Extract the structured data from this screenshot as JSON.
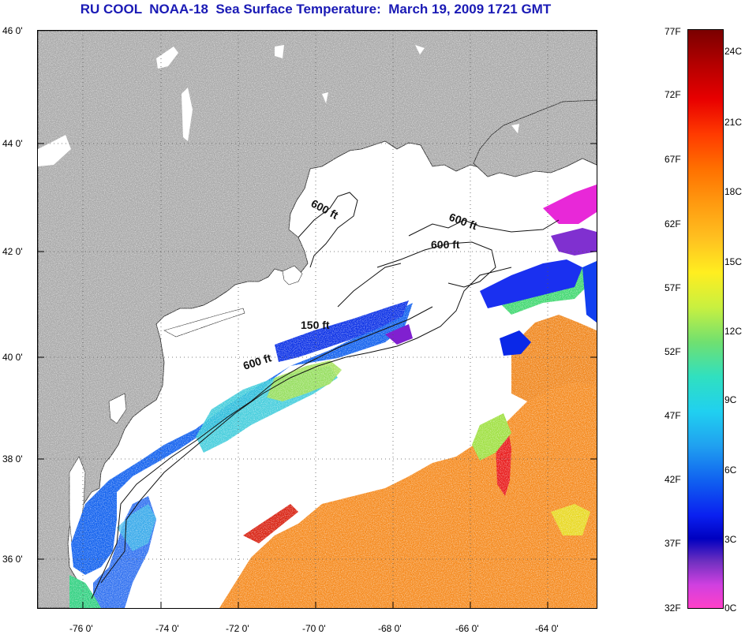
{
  "title": "RU COOL  NOAA-18  Sea Surface Temperature:  March 19, 2009 1721 GMT",
  "lat_labels": [
    "46 0'",
    "44 0'",
    "42 0'",
    "40 0'",
    "38 0'",
    "36 0'"
  ],
  "lon_labels": [
    "-76 0'",
    "-74 0'",
    "-72 0'",
    "-70 0'",
    "-68 0'",
    "-66 0'",
    "-64 0'"
  ],
  "contours": {
    "label_600_gom": "600 ft",
    "label_600_ne": "600 ft",
    "label_600_gb": "600 ft",
    "label_150": "150 ft",
    "label_600_shelf": "600 ft"
  },
  "colorbar": {
    "f_labels": [
      "77F",
      "72F",
      "67F",
      "62F",
      "57F",
      "52F",
      "47F",
      "42F",
      "37F",
      "32F"
    ],
    "c_labels": [
      "24C",
      "21C",
      "18C",
      "15C",
      "12C",
      "9C",
      "6C",
      "3C",
      "0C"
    ]
  },
  "colors": {
    "land": "#a9a9a9",
    "title": "#1a1ab5"
  }
}
